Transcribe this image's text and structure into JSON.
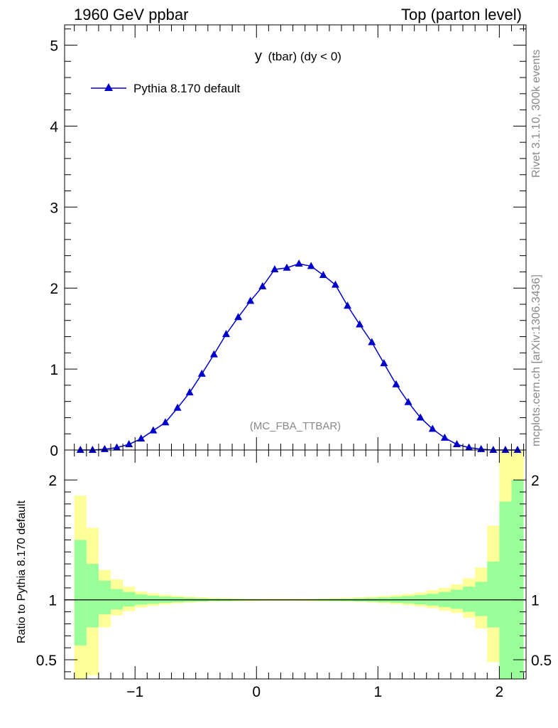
{
  "header": {
    "left": "1960 GeV ppbar",
    "right": "Top (parton level)"
  },
  "side": {
    "rivet": "Rivet 3.1.10,  300k events",
    "mcplots": "mcplots.cern.ch [arXiv:1306.3436]"
  },
  "colors": {
    "series": "#0000cc",
    "band_inner": "#99ff99",
    "band_outer": "#ffff99",
    "text_gray": "#888888"
  },
  "chart_data": [
    {
      "type": "line",
      "title_main": "y",
      "title_sub": "(tbar) (dy < 0)",
      "annotation": "(MC_FBA_TTBAR)",
      "xlim": [
        -1.58,
        2.22
      ],
      "ylim": [
        0,
        5.25
      ],
      "yticks": [
        0,
        1,
        2,
        3,
        4,
        5
      ],
      "ytick_labels": [
        "0",
        "1",
        "2",
        "3",
        "4",
        "5"
      ],
      "legend_position": "top-left",
      "series": [
        {
          "name": "Pythia 8.170 default",
          "marker": "triangle",
          "x": [
            -1.45,
            -1.35,
            -1.25,
            -1.15,
            -1.05,
            -0.95,
            -0.85,
            -0.75,
            -0.65,
            -0.55,
            -0.45,
            -0.35,
            -0.25,
            -0.15,
            -0.05,
            0.05,
            0.15,
            0.25,
            0.35,
            0.45,
            0.55,
            0.65,
            0.75,
            0.85,
            0.95,
            1.05,
            1.15,
            1.25,
            1.35,
            1.45,
            1.55,
            1.65,
            1.75,
            1.85,
            1.95,
            2.05,
            2.15
          ],
          "values": [
            0.0,
            0.0,
            0.01,
            0.03,
            0.07,
            0.14,
            0.24,
            0.34,
            0.52,
            0.71,
            0.94,
            1.18,
            1.43,
            1.64,
            1.84,
            2.02,
            2.23,
            2.25,
            2.3,
            2.27,
            2.16,
            2.04,
            1.78,
            1.55,
            1.33,
            1.07,
            0.81,
            0.59,
            0.4,
            0.26,
            0.15,
            0.07,
            0.03,
            0.01,
            0.0,
            0.0,
            0.0
          ]
        }
      ]
    },
    {
      "type": "area",
      "ylabel": "Ratio to Pythia 8.170 default",
      "xlim": [
        -1.58,
        2.22
      ],
      "ylim": [
        0.34,
        2.25
      ],
      "xticks": [
        -1,
        0,
        1,
        2
      ],
      "xtick_labels": [
        "−1",
        "0",
        "1",
        "2"
      ],
      "yticks": [
        0.5,
        1,
        2
      ],
      "ytick_labels": [
        "0.5",
        "1",
        "2"
      ],
      "reference_line": 1,
      "bin_edges": [
        -1.5,
        -1.4,
        -1.3,
        -1.2,
        -1.1,
        -1.0,
        -0.9,
        -0.8,
        -0.7,
        -0.6,
        -0.5,
        -0.4,
        -0.3,
        -0.2,
        -0.1,
        0.0,
        0.1,
        0.2,
        0.3,
        0.4,
        0.5,
        0.6,
        0.7,
        0.8,
        0.9,
        1.0,
        1.1,
        1.2,
        1.3,
        1.4,
        1.5,
        1.6,
        1.7,
        1.8,
        1.9,
        2.0,
        2.1,
        2.2
      ],
      "inner_band": {
        "lo": [
          0.62,
          0.77,
          0.88,
          0.92,
          0.945,
          0.96,
          0.968,
          0.975,
          0.98,
          0.984,
          0.987,
          0.99,
          0.991,
          0.993,
          0.994,
          0.995,
          0.995,
          0.995,
          0.995,
          0.994,
          0.993,
          0.991,
          0.99,
          0.987,
          0.984,
          0.98,
          0.976,
          0.97,
          0.962,
          0.952,
          0.94,
          0.925,
          0.9,
          0.865,
          0.77,
          0.34,
          0.34
        ],
        "hi": [
          1.5,
          1.3,
          1.16,
          1.09,
          1.065,
          1.045,
          1.035,
          1.027,
          1.022,
          1.017,
          1.013,
          1.01,
          1.009,
          1.007,
          1.006,
          1.005,
          1.005,
          1.005,
          1.005,
          1.006,
          1.007,
          1.009,
          1.01,
          1.013,
          1.016,
          1.02,
          1.025,
          1.032,
          1.04,
          1.05,
          1.065,
          1.085,
          1.11,
          1.15,
          1.32,
          1.82,
          2.0
        ]
      },
      "outer_band": {
        "lo": [
          0.34,
          0.37,
          0.77,
          0.87,
          0.905,
          0.935,
          0.95,
          0.962,
          0.97,
          0.977,
          0.982,
          0.985,
          0.987,
          0.989,
          0.99,
          0.991,
          0.991,
          0.991,
          0.991,
          0.99,
          0.989,
          0.987,
          0.985,
          0.982,
          0.978,
          0.972,
          0.965,
          0.955,
          0.945,
          0.93,
          0.91,
          0.89,
          0.85,
          0.76,
          0.48,
          0.34,
          0.34
        ],
        "hi": [
          1.87,
          1.6,
          1.25,
          1.17,
          1.11,
          1.07,
          1.055,
          1.043,
          1.034,
          1.027,
          1.022,
          1.018,
          1.015,
          1.013,
          1.011,
          1.01,
          1.01,
          1.01,
          1.01,
          1.011,
          1.013,
          1.015,
          1.018,
          1.022,
          1.027,
          1.033,
          1.04,
          1.05,
          1.062,
          1.08,
          1.1,
          1.13,
          1.18,
          1.27,
          1.62,
          2.25,
          2.25
        ]
      }
    }
  ]
}
